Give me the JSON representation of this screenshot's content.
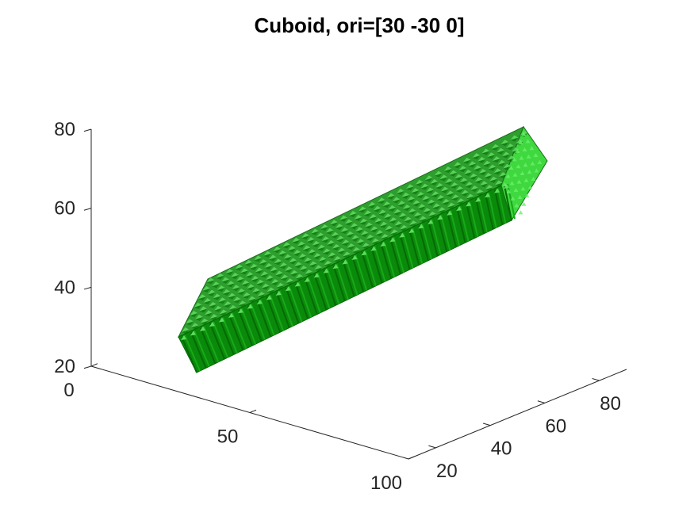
{
  "chart_data": {
    "type": "surface3d",
    "title": "Cuboid, ori=[30 -30 0]",
    "object": "voxelized cuboid",
    "colors": {
      "top": "#2e9e2e",
      "top_highlight": "#5fdc5f",
      "front": "#0a8a0a",
      "front_dark": "#046a04",
      "end": "#3fd83f",
      "edge": "#1a6e1a"
    },
    "axes": {
      "x": {
        "ticks": [
          0,
          50,
          100
        ],
        "tick_labels": [
          "0",
          "50",
          "100"
        ],
        "lim": [
          0,
          100
        ]
      },
      "y": {
        "ticks": [
          20,
          40,
          60,
          80
        ],
        "tick_labels": [
          "20",
          "40",
          "60",
          "80"
        ],
        "lim": [
          10,
          90
        ]
      },
      "z": {
        "ticks": [
          20,
          40,
          60,
          80
        ],
        "tick_labels": [
          "20",
          "40",
          "60",
          "80"
        ],
        "lim": [
          20,
          80
        ]
      }
    },
    "grid": false
  }
}
